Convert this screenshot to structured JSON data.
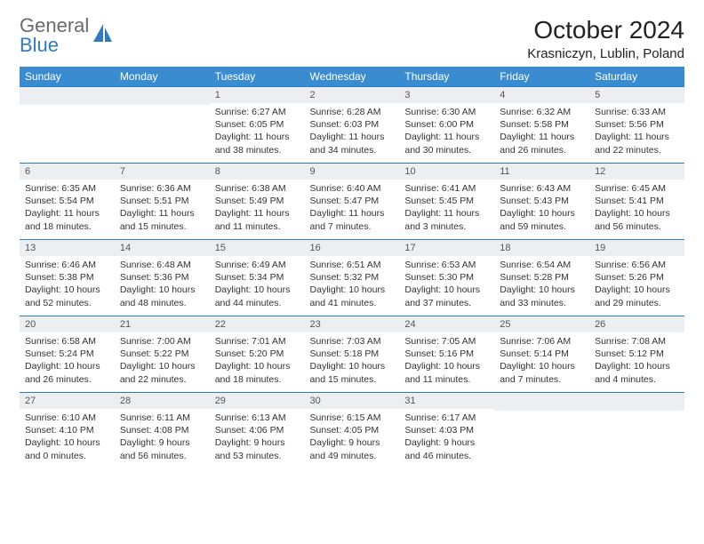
{
  "brand": {
    "line1": "General",
    "line2": "Blue"
  },
  "title": "October 2024",
  "location": "Krasniczyn, Lublin, Poland",
  "colors": {
    "header_bg": "#3a8cd1",
    "header_text": "#ffffff",
    "daynum_bg": "#eceff2",
    "rule": "#2f7bbf",
    "brand_gray": "#6b6b6b",
    "brand_blue": "#2f7bbf",
    "page_bg": "#ffffff"
  },
  "weekdays": [
    "Sunday",
    "Monday",
    "Tuesday",
    "Wednesday",
    "Thursday",
    "Friday",
    "Saturday"
  ],
  "leading_blanks": 2,
  "days": [
    {
      "n": "1",
      "sr": "6:27 AM",
      "ss": "6:05 PM",
      "dl": "11 hours and 38 minutes."
    },
    {
      "n": "2",
      "sr": "6:28 AM",
      "ss": "6:03 PM",
      "dl": "11 hours and 34 minutes."
    },
    {
      "n": "3",
      "sr": "6:30 AM",
      "ss": "6:00 PM",
      "dl": "11 hours and 30 minutes."
    },
    {
      "n": "4",
      "sr": "6:32 AM",
      "ss": "5:58 PM",
      "dl": "11 hours and 26 minutes."
    },
    {
      "n": "5",
      "sr": "6:33 AM",
      "ss": "5:56 PM",
      "dl": "11 hours and 22 minutes."
    },
    {
      "n": "6",
      "sr": "6:35 AM",
      "ss": "5:54 PM",
      "dl": "11 hours and 18 minutes."
    },
    {
      "n": "7",
      "sr": "6:36 AM",
      "ss": "5:51 PM",
      "dl": "11 hours and 15 minutes."
    },
    {
      "n": "8",
      "sr": "6:38 AM",
      "ss": "5:49 PM",
      "dl": "11 hours and 11 minutes."
    },
    {
      "n": "9",
      "sr": "6:40 AM",
      "ss": "5:47 PM",
      "dl": "11 hours and 7 minutes."
    },
    {
      "n": "10",
      "sr": "6:41 AM",
      "ss": "5:45 PM",
      "dl": "11 hours and 3 minutes."
    },
    {
      "n": "11",
      "sr": "6:43 AM",
      "ss": "5:43 PM",
      "dl": "10 hours and 59 minutes."
    },
    {
      "n": "12",
      "sr": "6:45 AM",
      "ss": "5:41 PM",
      "dl": "10 hours and 56 minutes."
    },
    {
      "n": "13",
      "sr": "6:46 AM",
      "ss": "5:38 PM",
      "dl": "10 hours and 52 minutes."
    },
    {
      "n": "14",
      "sr": "6:48 AM",
      "ss": "5:36 PM",
      "dl": "10 hours and 48 minutes."
    },
    {
      "n": "15",
      "sr": "6:49 AM",
      "ss": "5:34 PM",
      "dl": "10 hours and 44 minutes."
    },
    {
      "n": "16",
      "sr": "6:51 AM",
      "ss": "5:32 PM",
      "dl": "10 hours and 41 minutes."
    },
    {
      "n": "17",
      "sr": "6:53 AM",
      "ss": "5:30 PM",
      "dl": "10 hours and 37 minutes."
    },
    {
      "n": "18",
      "sr": "6:54 AM",
      "ss": "5:28 PM",
      "dl": "10 hours and 33 minutes."
    },
    {
      "n": "19",
      "sr": "6:56 AM",
      "ss": "5:26 PM",
      "dl": "10 hours and 29 minutes."
    },
    {
      "n": "20",
      "sr": "6:58 AM",
      "ss": "5:24 PM",
      "dl": "10 hours and 26 minutes."
    },
    {
      "n": "21",
      "sr": "7:00 AM",
      "ss": "5:22 PM",
      "dl": "10 hours and 22 minutes."
    },
    {
      "n": "22",
      "sr": "7:01 AM",
      "ss": "5:20 PM",
      "dl": "10 hours and 18 minutes."
    },
    {
      "n": "23",
      "sr": "7:03 AM",
      "ss": "5:18 PM",
      "dl": "10 hours and 15 minutes."
    },
    {
      "n": "24",
      "sr": "7:05 AM",
      "ss": "5:16 PM",
      "dl": "10 hours and 11 minutes."
    },
    {
      "n": "25",
      "sr": "7:06 AM",
      "ss": "5:14 PM",
      "dl": "10 hours and 7 minutes."
    },
    {
      "n": "26",
      "sr": "7:08 AM",
      "ss": "5:12 PM",
      "dl": "10 hours and 4 minutes."
    },
    {
      "n": "27",
      "sr": "6:10 AM",
      "ss": "4:10 PM",
      "dl": "10 hours and 0 minutes."
    },
    {
      "n": "28",
      "sr": "6:11 AM",
      "ss": "4:08 PM",
      "dl": "9 hours and 56 minutes."
    },
    {
      "n": "29",
      "sr": "6:13 AM",
      "ss": "4:06 PM",
      "dl": "9 hours and 53 minutes."
    },
    {
      "n": "30",
      "sr": "6:15 AM",
      "ss": "4:05 PM",
      "dl": "9 hours and 49 minutes."
    },
    {
      "n": "31",
      "sr": "6:17 AM",
      "ss": "4:03 PM",
      "dl": "9 hours and 46 minutes."
    }
  ],
  "labels": {
    "sunrise": "Sunrise: ",
    "sunset": "Sunset: ",
    "daylight": "Daylight: "
  }
}
